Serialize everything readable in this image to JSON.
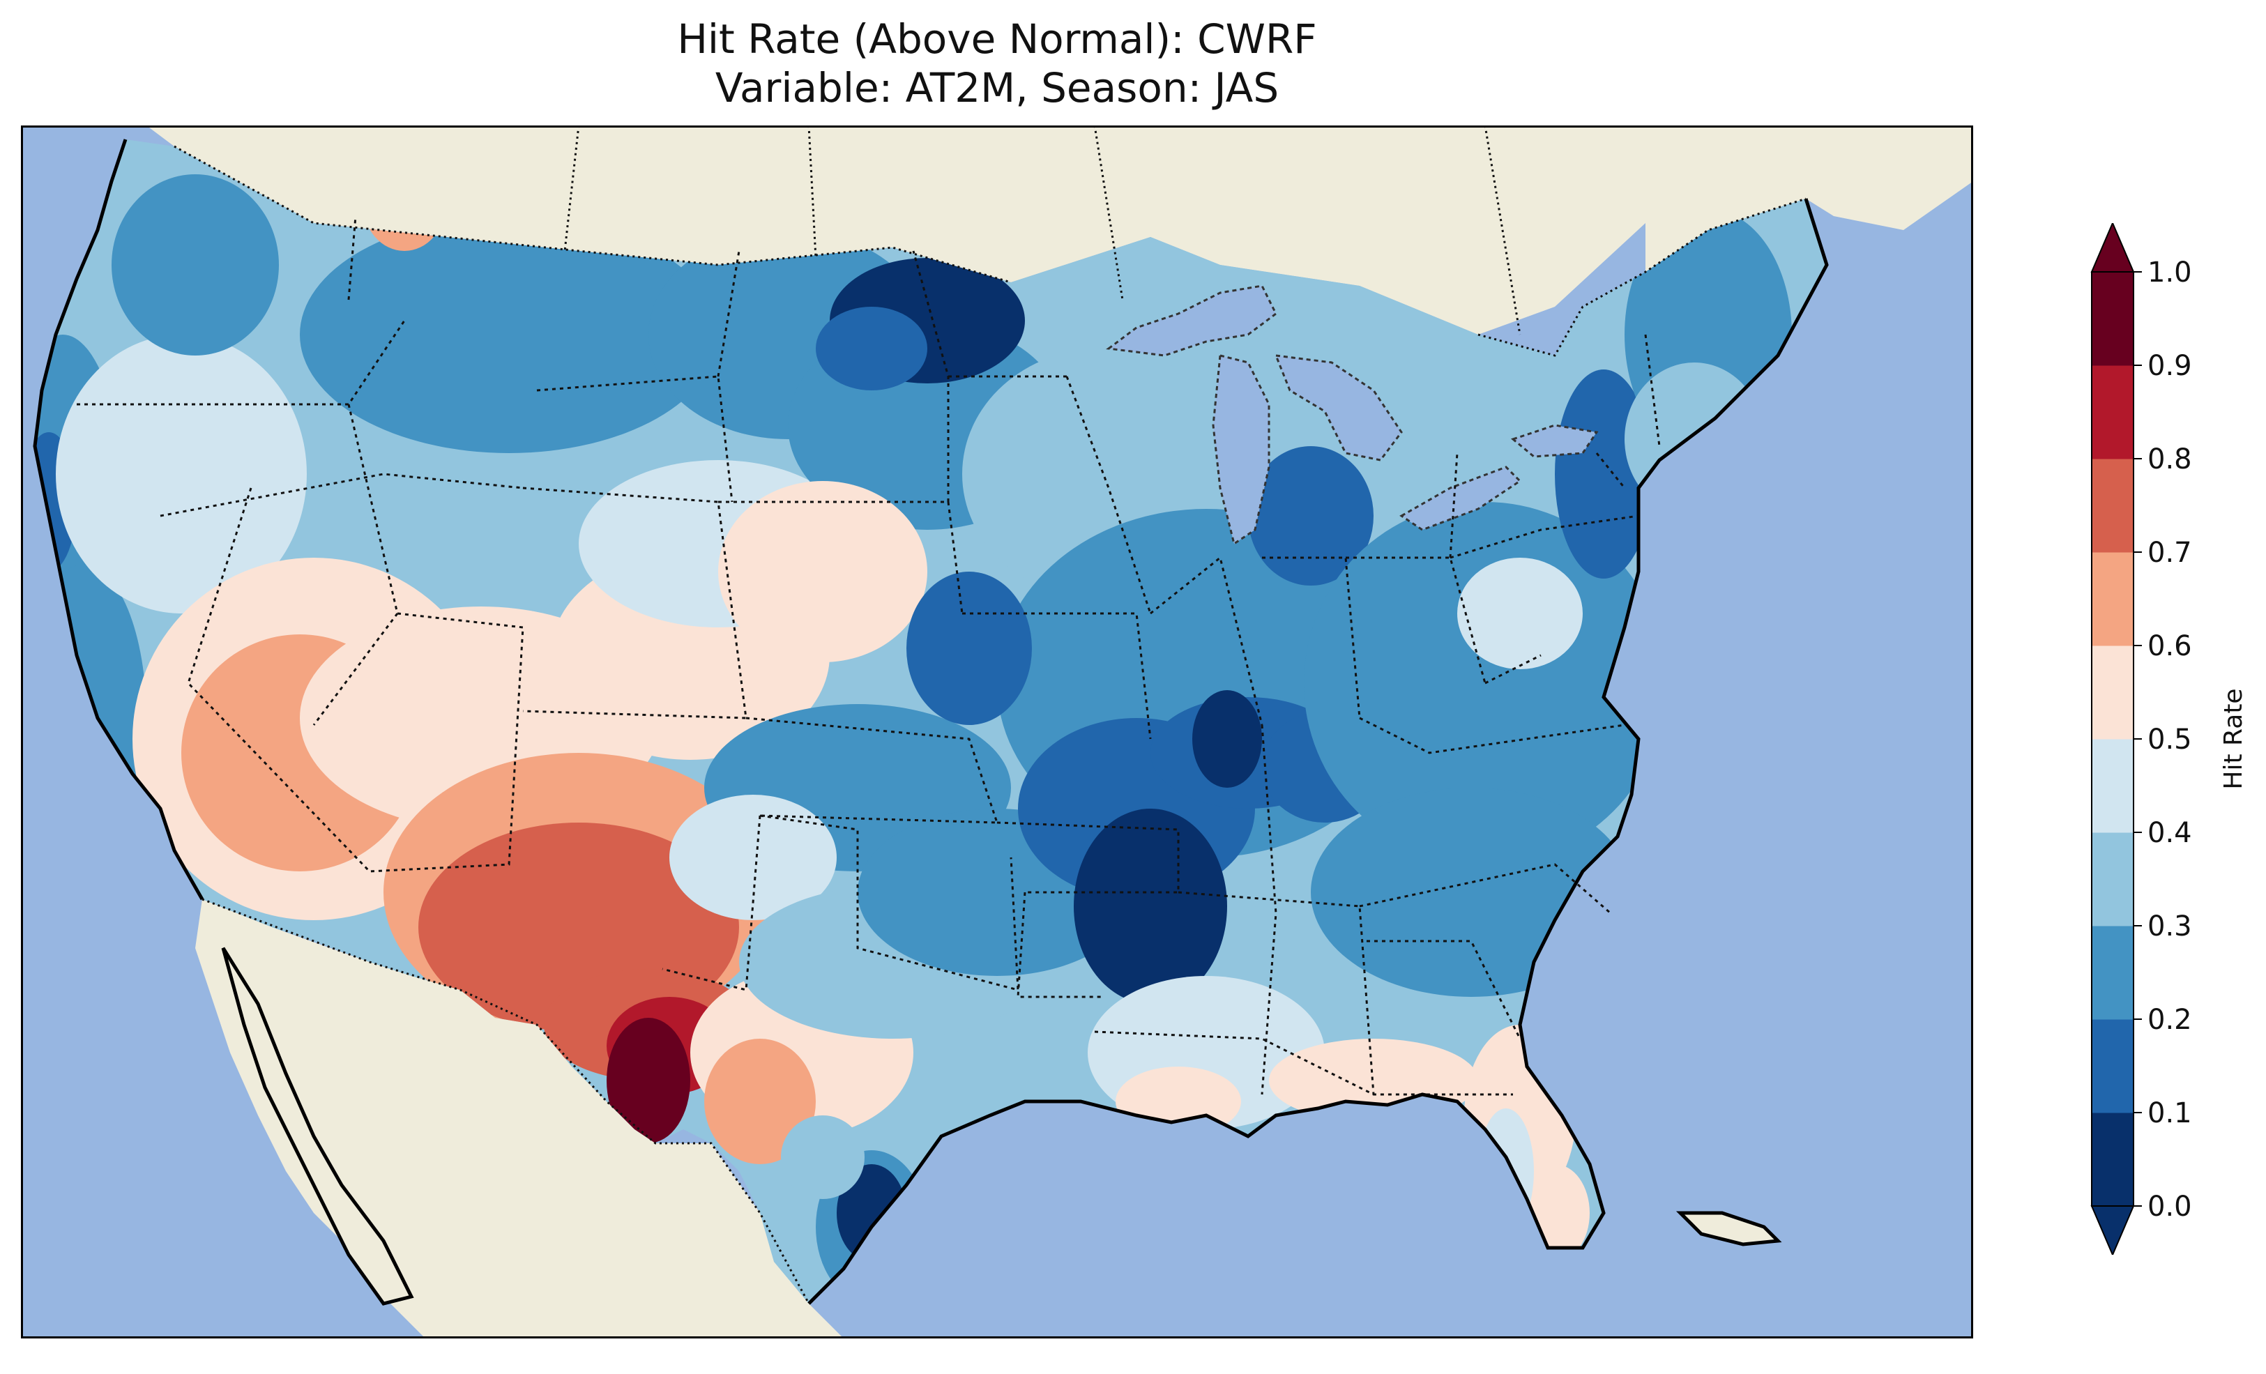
{
  "title": {
    "line1": "Hit Rate (Above Normal): CWRF",
    "line2": "Variable: AT2M, Season: JAS"
  },
  "colors": {
    "ocean": "#97b6e1",
    "land": "#efecdb",
    "bins": [
      "#08306b",
      "#2166ac",
      "#4393c3",
      "#92c5de",
      "#d1e5f0",
      "#fbe3d6",
      "#f4a582",
      "#d6604d",
      "#b2182b",
      "#67001f"
    ]
  },
  "colorbar": {
    "label": "Hit Rate",
    "ticks": [
      "0.0",
      "0.1",
      "0.2",
      "0.3",
      "0.4",
      "0.5",
      "0.6",
      "0.7",
      "0.8",
      "0.9",
      "1.0"
    ],
    "extend": "both"
  },
  "map": {
    "region": "Contiguous United States",
    "projection": "Lambert conformal",
    "features": [
      "coastlines",
      "state borders",
      "country borders",
      "lakes"
    ]
  }
}
